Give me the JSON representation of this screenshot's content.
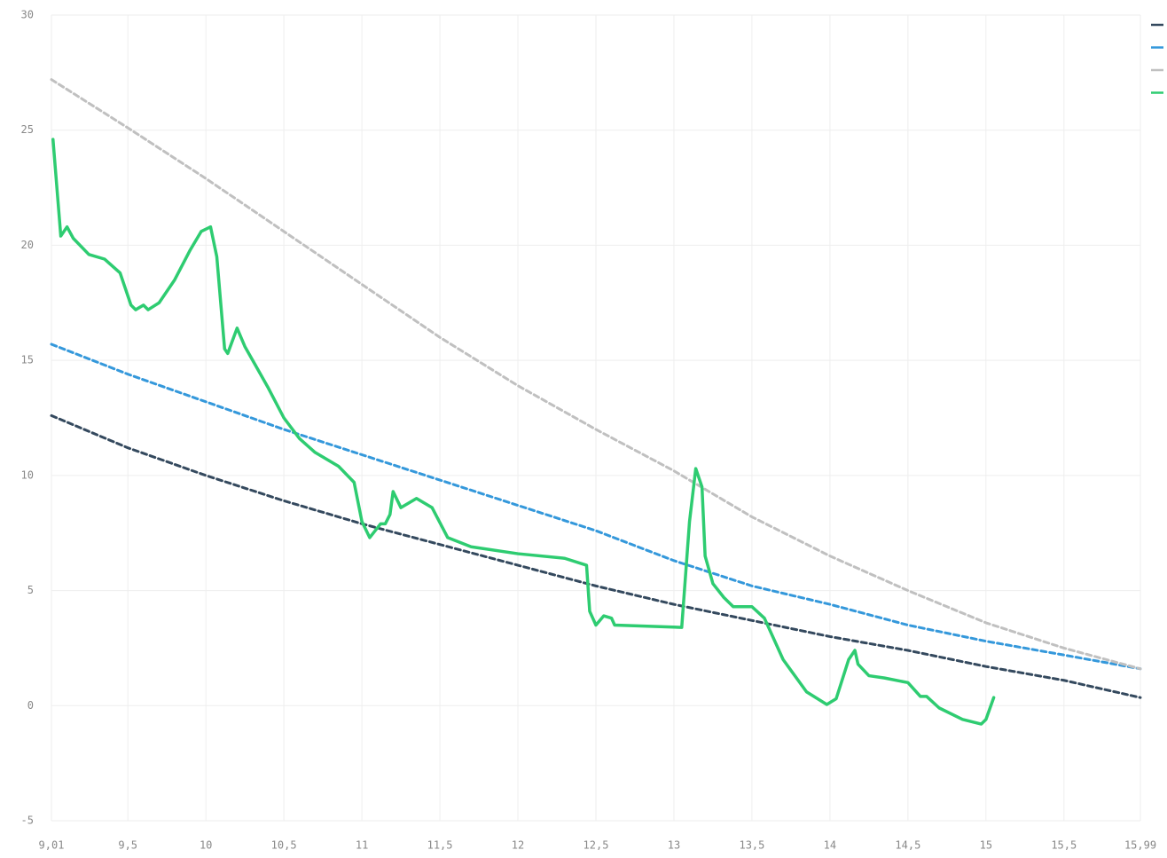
{
  "chart_data": {
    "type": "line",
    "xlim": [
      9.01,
      15.99
    ],
    "ylim": [
      -5,
      30
    ],
    "xticks": [
      {
        "value": 9.01,
        "label": "9,01"
      },
      {
        "value": 9.5,
        "label": "9,5"
      },
      10,
      {
        "value": 10.5,
        "label": "10,5"
      },
      11,
      {
        "value": 11.5,
        "label": "11,5"
      },
      12,
      {
        "value": 12.5,
        "label": "12,5"
      },
      13,
      {
        "value": 13.5,
        "label": "13,5"
      },
      14,
      {
        "value": 14.5,
        "label": "14,5"
      },
      15,
      {
        "value": 15.5,
        "label": "15,5"
      },
      {
        "value": 15.99,
        "label": "15,99"
      }
    ],
    "yticks": [
      -5,
      0,
      5,
      10,
      15,
      20,
      25,
      30
    ],
    "grid": true,
    "legend": "top-right",
    "series": [
      {
        "color": "#34495e",
        "dashed": true,
        "x": [
          9.01,
          9.5,
          10,
          10.5,
          11,
          11.5,
          12,
          12.5,
          13,
          13.5,
          14,
          14.5,
          15,
          15.5,
          15.99
        ],
        "values": [
          12.6,
          11.2,
          10.0,
          8.9,
          7.9,
          7.0,
          6.1,
          5.2,
          4.4,
          3.7,
          3.0,
          2.4,
          1.7,
          1.1,
          0.35
        ]
      },
      {
        "color": "#3498db",
        "dashed": true,
        "x": [
          9.01,
          9.5,
          10,
          10.5,
          11,
          11.5,
          12,
          12.5,
          13,
          13.5,
          14,
          14.5,
          15,
          15.5,
          15.99
        ],
        "values": [
          15.7,
          14.4,
          13.2,
          12.0,
          10.9,
          9.8,
          8.7,
          7.6,
          6.3,
          5.2,
          4.4,
          3.5,
          2.8,
          2.2,
          1.6
        ]
      },
      {
        "color": "#c0c0c0",
        "dashed": true,
        "x": [
          9.01,
          9.5,
          10,
          10.5,
          11,
          11.5,
          12,
          12.5,
          13,
          13.5,
          14,
          14.5,
          15,
          15.5,
          15.99
        ],
        "values": [
          27.2,
          25.1,
          22.9,
          20.6,
          18.3,
          16.0,
          13.9,
          12.0,
          10.2,
          8.2,
          6.5,
          5.0,
          3.6,
          2.5,
          1.6
        ]
      },
      {
        "color": "#2ecc71",
        "dashed": false,
        "x": [
          9.02,
          9.07,
          9.11,
          9.15,
          9.25,
          9.35,
          9.45,
          9.52,
          9.55,
          9.6,
          9.63,
          9.7,
          9.8,
          9.9,
          9.97,
          10.03,
          10.07,
          10.12,
          10.14,
          10.2,
          10.25,
          10.3,
          10.4,
          10.5,
          10.6,
          10.7,
          10.85,
          10.95,
          11.0,
          11.05,
          11.12,
          11.15,
          11.18,
          11.2,
          11.25,
          11.35,
          11.45,
          11.55,
          11.7,
          12.0,
          12.3,
          12.44,
          12.46,
          12.5,
          12.55,
          12.6,
          12.62,
          13.05,
          13.1,
          13.14,
          13.18,
          13.2,
          13.25,
          13.32,
          13.38,
          13.5,
          13.58,
          13.7,
          13.85,
          13.98,
          14.04,
          14.12,
          14.16,
          14.18,
          14.25,
          14.35,
          14.5,
          14.58,
          14.62,
          14.7,
          14.85,
          14.97,
          15.0,
          15.05
        ],
        "values": [
          24.6,
          20.4,
          20.8,
          20.3,
          19.6,
          19.4,
          18.8,
          17.4,
          17.2,
          17.4,
          17.2,
          17.5,
          18.5,
          19.8,
          20.6,
          20.8,
          19.5,
          15.5,
          15.3,
          16.4,
          15.6,
          15.0,
          13.8,
          12.5,
          11.6,
          11.0,
          10.4,
          9.7,
          8.0,
          7.3,
          7.9,
          7.9,
          8.3,
          9.3,
          8.6,
          9.0,
          8.6,
          7.3,
          6.9,
          6.6,
          6.4,
          6.1,
          4.1,
          3.5,
          3.9,
          3.8,
          3.5,
          3.4,
          8.0,
          10.3,
          9.5,
          6.5,
          5.3,
          4.7,
          4.3,
          4.3,
          3.8,
          2.0,
          0.6,
          0.05,
          0.3,
          2.0,
          2.4,
          1.8,
          1.3,
          1.2,
          1.0,
          0.4,
          0.4,
          -0.1,
          -0.6,
          -0.8,
          -0.6,
          0.35
        ]
      }
    ]
  }
}
